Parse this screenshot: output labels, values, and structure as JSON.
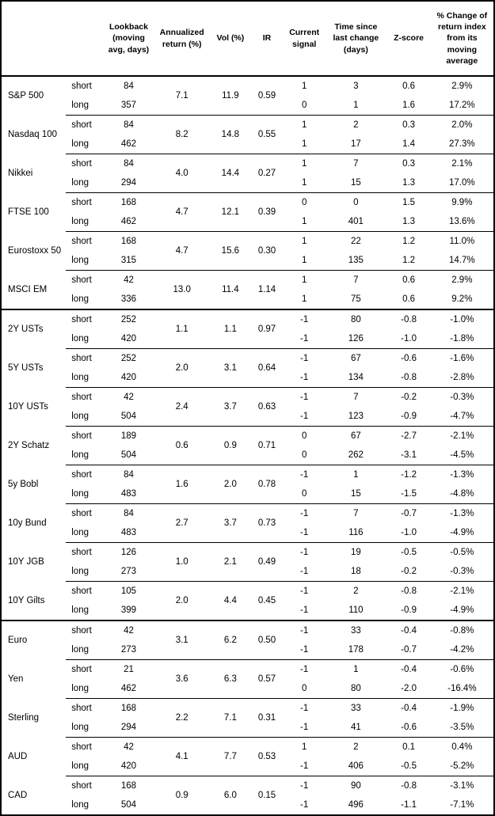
{
  "table": {
    "columns": {
      "instrument": "",
      "leg": "",
      "lookback": "Lookback (moving avg, days)",
      "annualized_return": "Annualized return (%)",
      "vol": "Vol (%)",
      "ir": "IR",
      "current_signal": "Current signal",
      "time_since": "Time since last change (days)",
      "z_score": "Z-score",
      "pct_change": "% Change of return index from its moving average"
    },
    "sections": [
      {
        "key": "equity-indices",
        "groups": [
          {
            "instrument": "S&P 500",
            "annualized_return": "7.1",
            "vol": "11.9",
            "ir": "0.59",
            "rows": [
              {
                "leg": "short",
                "lookback": "84",
                "signal": "1",
                "time_since": "3",
                "z_score": "0.6",
                "pct_change": "2.9%"
              },
              {
                "leg": "long",
                "lookback": "357",
                "signal": "0",
                "time_since": "1",
                "z_score": "1.6",
                "pct_change": "17.2%"
              }
            ]
          },
          {
            "instrument": "Nasdaq 100",
            "annualized_return": "8.2",
            "vol": "14.8",
            "ir": "0.55",
            "rows": [
              {
                "leg": "short",
                "lookback": "84",
                "signal": "1",
                "time_since": "2",
                "z_score": "0.3",
                "pct_change": "2.0%"
              },
              {
                "leg": "long",
                "lookback": "462",
                "signal": "1",
                "time_since": "17",
                "z_score": "1.4",
                "pct_change": "27.3%"
              }
            ]
          },
          {
            "instrument": "Nikkei",
            "annualized_return": "4.0",
            "vol": "14.4",
            "ir": "0.27",
            "rows": [
              {
                "leg": "short",
                "lookback": "84",
                "signal": "1",
                "time_since": "7",
                "z_score": "0.3",
                "pct_change": "2.1%"
              },
              {
                "leg": "long",
                "lookback": "294",
                "signal": "1",
                "time_since": "15",
                "z_score": "1.3",
                "pct_change": "17.0%"
              }
            ]
          },
          {
            "instrument": "FTSE 100",
            "annualized_return": "4.7",
            "vol": "12.1",
            "ir": "0.39",
            "rows": [
              {
                "leg": "short",
                "lookback": "168",
                "signal": "0",
                "time_since": "0",
                "z_score": "1.5",
                "pct_change": "9.9%"
              },
              {
                "leg": "long",
                "lookback": "462",
                "signal": "1",
                "time_since": "401",
                "z_score": "1.3",
                "pct_change": "13.6%"
              }
            ]
          },
          {
            "instrument": "Eurostoxx 50",
            "annualized_return": "4.7",
            "vol": "15.6",
            "ir": "0.30",
            "rows": [
              {
                "leg": "short",
                "lookback": "168",
                "signal": "1",
                "time_since": "22",
                "z_score": "1.2",
                "pct_change": "11.0%"
              },
              {
                "leg": "long",
                "lookback": "315",
                "signal": "1",
                "time_since": "135",
                "z_score": "1.2",
                "pct_change": "14.7%"
              }
            ]
          },
          {
            "instrument": "MSCI EM",
            "annualized_return": "13.0",
            "vol": "11.4",
            "ir": "1.14",
            "rows": [
              {
                "leg": "short",
                "lookback": "42",
                "signal": "1",
                "time_since": "7",
                "z_score": "0.6",
                "pct_change": "2.9%"
              },
              {
                "leg": "long",
                "lookback": "336",
                "signal": "1",
                "time_since": "75",
                "z_score": "0.6",
                "pct_change": "9.2%"
              }
            ]
          }
        ]
      },
      {
        "key": "bonds",
        "groups": [
          {
            "instrument": "2Y USTs",
            "annualized_return": "1.1",
            "vol": "1.1",
            "ir": "0.97",
            "rows": [
              {
                "leg": "short",
                "lookback": "252",
                "signal": "-1",
                "time_since": "80",
                "z_score": "-0.8",
                "pct_change": "-1.0%"
              },
              {
                "leg": "long",
                "lookback": "420",
                "signal": "-1",
                "time_since": "126",
                "z_score": "-1.0",
                "pct_change": "-1.8%"
              }
            ]
          },
          {
            "instrument": "5Y USTs",
            "annualized_return": "2.0",
            "vol": "3.1",
            "ir": "0.64",
            "rows": [
              {
                "leg": "short",
                "lookback": "252",
                "signal": "-1",
                "time_since": "67",
                "z_score": "-0.6",
                "pct_change": "-1.6%"
              },
              {
                "leg": "long",
                "lookback": "420",
                "signal": "-1",
                "time_since": "134",
                "z_score": "-0.8",
                "pct_change": "-2.8%"
              }
            ]
          },
          {
            "instrument": "10Y USTs",
            "annualized_return": "2.4",
            "vol": "3.7",
            "ir": "0.63",
            "rows": [
              {
                "leg": "short",
                "lookback": "42",
                "signal": "-1",
                "time_since": "7",
                "z_score": "-0.2",
                "pct_change": "-0.3%"
              },
              {
                "leg": "long",
                "lookback": "504",
                "signal": "-1",
                "time_since": "123",
                "z_score": "-0.9",
                "pct_change": "-4.7%"
              }
            ]
          },
          {
            "instrument": "2Y Schatz",
            "annualized_return": "0.6",
            "vol": "0.9",
            "ir": "0.71",
            "rows": [
              {
                "leg": "short",
                "lookback": "189",
                "signal": "0",
                "time_since": "67",
                "z_score": "-2.7",
                "pct_change": "-2.1%"
              },
              {
                "leg": "long",
                "lookback": "504",
                "signal": "0",
                "time_since": "262",
                "z_score": "-3.1",
                "pct_change": "-4.5%"
              }
            ]
          },
          {
            "instrument": "5y Bobl",
            "annualized_return": "1.6",
            "vol": "2.0",
            "ir": "0.78",
            "rows": [
              {
                "leg": "short",
                "lookback": "84",
                "signal": "-1",
                "time_since": "1",
                "z_score": "-1.2",
                "pct_change": "-1.3%"
              },
              {
                "leg": "long",
                "lookback": "483",
                "signal": "0",
                "time_since": "15",
                "z_score": "-1.5",
                "pct_change": "-4.8%"
              }
            ]
          },
          {
            "instrument": "10y Bund",
            "annualized_return": "2.7",
            "vol": "3.7",
            "ir": "0.73",
            "rows": [
              {
                "leg": "short",
                "lookback": "84",
                "signal": "-1",
                "time_since": "7",
                "z_score": "-0.7",
                "pct_change": "-1.3%"
              },
              {
                "leg": "long",
                "lookback": "483",
                "signal": "-1",
                "time_since": "116",
                "z_score": "-1.0",
                "pct_change": "-4.9%"
              }
            ]
          },
          {
            "instrument": "10Y JGB",
            "annualized_return": "1.0",
            "vol": "2.1",
            "ir": "0.49",
            "rows": [
              {
                "leg": "short",
                "lookback": "126",
                "signal": "-1",
                "time_since": "19",
                "z_score": "-0.5",
                "pct_change": "-0.5%"
              },
              {
                "leg": "long",
                "lookback": "273",
                "signal": "-1",
                "time_since": "18",
                "z_score": "-0.2",
                "pct_change": "-0.3%"
              }
            ]
          },
          {
            "instrument": "10Y Gilts",
            "annualized_return": "2.0",
            "vol": "4.4",
            "ir": "0.45",
            "rows": [
              {
                "leg": "short",
                "lookback": "105",
                "signal": "-1",
                "time_since": "2",
                "z_score": "-0.8",
                "pct_change": "-2.1%"
              },
              {
                "leg": "long",
                "lookback": "399",
                "signal": "-1",
                "time_since": "110",
                "z_score": "-0.9",
                "pct_change": "-4.9%"
              }
            ]
          }
        ]
      },
      {
        "key": "fx",
        "groups": [
          {
            "instrument": "Euro",
            "annualized_return": "3.1",
            "vol": "6.2",
            "ir": "0.50",
            "rows": [
              {
                "leg": "short",
                "lookback": "42",
                "signal": "-1",
                "time_since": "33",
                "z_score": "-0.4",
                "pct_change": "-0.8%"
              },
              {
                "leg": "long",
                "lookback": "273",
                "signal": "-1",
                "time_since": "178",
                "z_score": "-0.7",
                "pct_change": "-4.2%"
              }
            ]
          },
          {
            "instrument": "Yen",
            "annualized_return": "3.6",
            "vol": "6.3",
            "ir": "0.57",
            "rows": [
              {
                "leg": "short",
                "lookback": "21",
                "signal": "-1",
                "time_since": "1",
                "z_score": "-0.4",
                "pct_change": "-0.6%"
              },
              {
                "leg": "long",
                "lookback": "462",
                "signal": "0",
                "time_since": "80",
                "z_score": "-2.0",
                "pct_change": "-16.4%"
              }
            ]
          },
          {
            "instrument": "Sterling",
            "annualized_return": "2.2",
            "vol": "7.1",
            "ir": "0.31",
            "rows": [
              {
                "leg": "short",
                "lookback": "168",
                "signal": "-1",
                "time_since": "33",
                "z_score": "-0.4",
                "pct_change": "-1.9%"
              },
              {
                "leg": "long",
                "lookback": "294",
                "signal": "-1",
                "time_since": "41",
                "z_score": "-0.6",
                "pct_change": "-3.5%"
              }
            ]
          },
          {
            "instrument": "AUD",
            "annualized_return": "4.1",
            "vol": "7.7",
            "ir": "0.53",
            "rows": [
              {
                "leg": "short",
                "lookback": "42",
                "signal": "1",
                "time_since": "2",
                "z_score": "0.1",
                "pct_change": "0.4%"
              },
              {
                "leg": "long",
                "lookback": "420",
                "signal": "-1",
                "time_since": "406",
                "z_score": "-0.5",
                "pct_change": "-5.2%"
              }
            ]
          },
          {
            "instrument": "CAD",
            "annualized_return": "0.9",
            "vol": "6.0",
            "ir": "0.15",
            "rows": [
              {
                "leg": "short",
                "lookback": "168",
                "signal": "-1",
                "time_since": "90",
                "z_score": "-0.8",
                "pct_change": "-3.1%"
              },
              {
                "leg": "long",
                "lookback": "504",
                "signal": "-1",
                "time_since": "496",
                "z_score": "-1.1",
                "pct_change": "-7.1%"
              }
            ]
          }
        ]
      }
    ]
  }
}
